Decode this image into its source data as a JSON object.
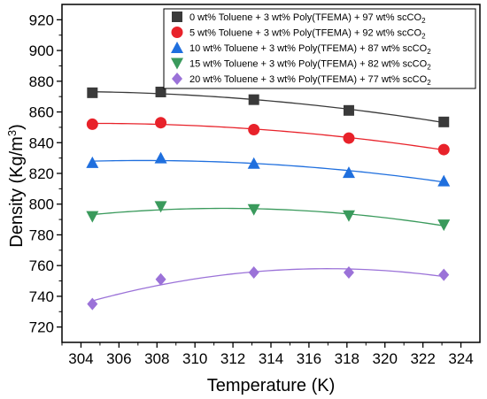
{
  "chart_data": {
    "type": "scatter",
    "xlabel": "Temperature (K)",
    "ylabel": "Density (Kg/m³)",
    "xlim": [
      303,
      325
    ],
    "ylim": [
      710,
      930
    ],
    "x_ticks": [
      "304",
      "306",
      "308",
      "310",
      "312",
      "314",
      "316",
      "318",
      "320",
      "322",
      "324"
    ],
    "y_ticks": [
      "720",
      "740",
      "760",
      "780",
      "800",
      "820",
      "840",
      "860",
      "880",
      "900",
      "920"
    ],
    "grid": false,
    "legend_position": "top-right",
    "series": [
      {
        "name": "0 wt% Toluene + 3 wt% Poly(TFEMA) + 97 wt% scCO2",
        "marker": "square",
        "color": "#3a3a3a",
        "x": [
          304.6,
          308.2,
          313.1,
          318.1,
          323.1
        ],
        "y": [
          872.5,
          873.0,
          868.0,
          861.0,
          853.5
        ]
      },
      {
        "name": "5 wt% Toluene + 3 wt% Poly(TFEMA) + 92 wt% scCO2",
        "marker": "circle",
        "color": "#e8222a",
        "x": [
          304.6,
          308.2,
          313.1,
          318.1,
          323.1
        ],
        "y": [
          852.0,
          853.0,
          848.5,
          843.0,
          835.5
        ]
      },
      {
        "name": "10 wt% Toluene + 3 wt% Poly(TFEMA) + 87 wt% scCO2",
        "marker": "triangle-up",
        "color": "#1f6fde",
        "x": [
          304.6,
          308.2,
          313.1,
          318.1,
          323.1
        ],
        "y": [
          827.0,
          830.0,
          826.5,
          820.5,
          815.0
        ]
      },
      {
        "name": "15 wt% Toluene + 3 wt% Poly(TFEMA) + 82 wt% scCO2",
        "marker": "triangle-down",
        "color": "#3a9a5c",
        "x": [
          304.6,
          308.2,
          313.1,
          318.1,
          323.1
        ],
        "y": [
          792.0,
          798.5,
          796.5,
          792.5,
          786.5
        ]
      },
      {
        "name": "20 wt% Toluene + 3 wt% Poly(TFEMA) + 77 wt% scCO2",
        "marker": "diamond",
        "color": "#9b72d8",
        "x": [
          304.6,
          308.2,
          313.1,
          318.1,
          323.1
        ],
        "y": [
          735.0,
          751.0,
          755.5,
          755.5,
          754.0
        ]
      }
    ]
  }
}
